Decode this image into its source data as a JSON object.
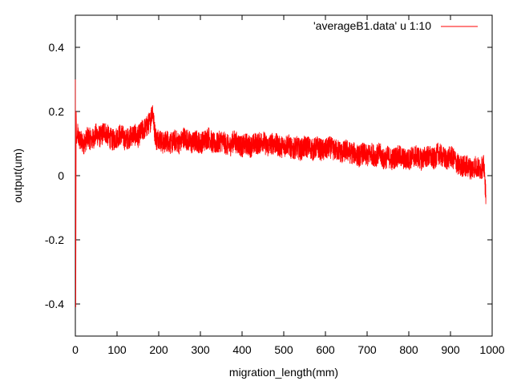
{
  "chart_data": {
    "type": "line",
    "title": "",
    "xlabel": "migration_length(mm)",
    "ylabel": "output(um)",
    "xlim": [
      0,
      1000
    ],
    "ylim": [
      -0.5,
      0.5
    ],
    "x_ticks": [
      0,
      100,
      200,
      300,
      400,
      500,
      600,
      700,
      800,
      900,
      1000
    ],
    "y_ticks": [
      -0.4,
      -0.2,
      0,
      0.2,
      0.4
    ],
    "y_tick_labels": [
      "-0.4",
      "-0.2",
      "0",
      "0.2",
      "0.4"
    ],
    "legend_position": "top-right",
    "grid": false,
    "series": [
      {
        "name": "'averageB1.data' u 1:10",
        "color": "#ff0000",
        "x": [
          0,
          1,
          2,
          3,
          5,
          10,
          20,
          30,
          40,
          50,
          60,
          70,
          80,
          90,
          100,
          110,
          120,
          130,
          140,
          150,
          160,
          170,
          180,
          185,
          190,
          195,
          200,
          210,
          220,
          230,
          240,
          250,
          260,
          270,
          280,
          290,
          300,
          310,
          320,
          330,
          340,
          350,
          360,
          370,
          380,
          390,
          400,
          410,
          420,
          430,
          440,
          450,
          460,
          470,
          480,
          490,
          500,
          510,
          520,
          530,
          540,
          550,
          560,
          570,
          580,
          590,
          600,
          610,
          620,
          630,
          640,
          650,
          660,
          670,
          680,
          690,
          700,
          710,
          720,
          730,
          740,
          750,
          760,
          770,
          780,
          790,
          800,
          810,
          820,
          830,
          840,
          850,
          860,
          870,
          880,
          890,
          900,
          910,
          920,
          930,
          940,
          950,
          960,
          970,
          980,
          985
        ],
        "y": [
          0.3,
          -0.41,
          0.2,
          0.1,
          0.13,
          0.11,
          0.1,
          0.12,
          0.11,
          0.13,
          0.12,
          0.14,
          0.12,
          0.11,
          0.12,
          0.13,
          0.11,
          0.12,
          0.13,
          0.12,
          0.14,
          0.15,
          0.17,
          0.21,
          0.14,
          0.11,
          0.12,
          0.1,
          0.11,
          0.1,
          0.11,
          0.1,
          0.12,
          0.11,
          0.1,
          0.11,
          0.1,
          0.11,
          0.12,
          0.1,
          0.1,
          0.11,
          0.1,
          0.09,
          0.11,
          0.1,
          0.09,
          0.1,
          0.09,
          0.1,
          0.1,
          0.11,
          0.09,
          0.1,
          0.1,
          0.09,
          0.09,
          0.1,
          0.08,
          0.09,
          0.08,
          0.09,
          0.09,
          0.08,
          0.09,
          0.08,
          0.08,
          0.09,
          0.08,
          0.08,
          0.07,
          0.08,
          0.07,
          0.07,
          0.06,
          0.07,
          0.06,
          0.07,
          0.06,
          0.07,
          0.05,
          0.06,
          0.05,
          0.06,
          0.06,
          0.05,
          0.05,
          0.06,
          0.06,
          0.05,
          0.06,
          0.06,
          0.05,
          0.07,
          0.06,
          0.05,
          0.06,
          0.05,
          0.03,
          0.03,
          0.03,
          0.02,
          0.03,
          0.02,
          0.03,
          -0.06
        ],
        "noise_amplitude": 0.035
      }
    ]
  }
}
